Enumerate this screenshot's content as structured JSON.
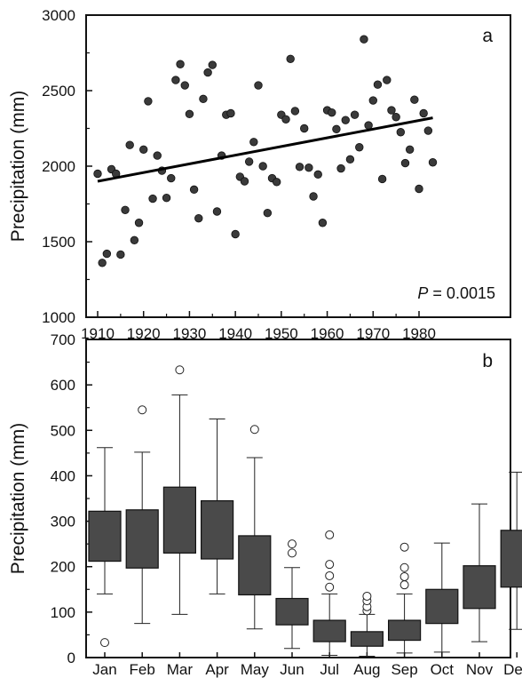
{
  "chart_data": [
    {
      "type": "scatter",
      "panel_label": "a",
      "ylabel": "Precipitation (mm)",
      "xlabel": "",
      "xlim": [
        1906,
        1984
      ],
      "ylim": [
        1000,
        3000
      ],
      "xticks": [
        1910,
        1920,
        1930,
        1940,
        1950,
        1960,
        1970,
        1980
      ],
      "yticks": [
        1000,
        1500,
        2000,
        2500,
        3000
      ],
      "annotation_var": "P",
      "annotation_value": " = 0.0015",
      "grid": false,
      "trend_line": {
        "x": [
          1910,
          1983
        ],
        "y": [
          1900,
          2320
        ]
      },
      "points": [
        [
          1910,
          1950
        ],
        [
          1911,
          1360
        ],
        [
          1912,
          1420
        ],
        [
          1913,
          1980
        ],
        [
          1914,
          1950
        ],
        [
          1915,
          1415
        ],
        [
          1916,
          1710
        ],
        [
          1917,
          2140
        ],
        [
          1918,
          1510
        ],
        [
          1919,
          1625
        ],
        [
          1920,
          2110
        ],
        [
          1921,
          2430
        ],
        [
          1922,
          1785
        ],
        [
          1923,
          2070
        ],
        [
          1924,
          1970
        ],
        [
          1925,
          1790
        ],
        [
          1926,
          1920
        ],
        [
          1927,
          2570
        ],
        [
          1928,
          2675
        ],
        [
          1929,
          2535
        ],
        [
          1930,
          2345
        ],
        [
          1931,
          1845
        ],
        [
          1932,
          1655
        ],
        [
          1933,
          2445
        ],
        [
          1934,
          2620
        ],
        [
          1935,
          2670
        ],
        [
          1936,
          1700
        ],
        [
          1937,
          2070
        ],
        [
          1938,
          2340
        ],
        [
          1939,
          2350
        ],
        [
          1940,
          1550
        ],
        [
          1941,
          1930
        ],
        [
          1942,
          1900
        ],
        [
          1943,
          2030
        ],
        [
          1944,
          2160
        ],
        [
          1945,
          2535
        ],
        [
          1946,
          2000
        ],
        [
          1947,
          1690
        ],
        [
          1948,
          1920
        ],
        [
          1949,
          1895
        ],
        [
          1950,
          2340
        ],
        [
          1951,
          2310
        ],
        [
          1952,
          2710
        ],
        [
          1953,
          2365
        ],
        [
          1954,
          1995
        ],
        [
          1955,
          2250
        ],
        [
          1956,
          1990
        ],
        [
          1957,
          1800
        ],
        [
          1958,
          1945
        ],
        [
          1959,
          1625
        ],
        [
          1960,
          2370
        ],
        [
          1961,
          2355
        ],
        [
          1962,
          2245
        ],
        [
          1963,
          1985
        ],
        [
          1964,
          2305
        ],
        [
          1965,
          2045
        ],
        [
          1966,
          2340
        ],
        [
          1967,
          2125
        ],
        [
          1968,
          2840
        ],
        [
          1969,
          2270
        ],
        [
          1970,
          2435
        ],
        [
          1971,
          2540
        ],
        [
          1972,
          1915
        ],
        [
          1973,
          2570
        ],
        [
          1974,
          2370
        ],
        [
          1975,
          2325
        ],
        [
          1976,
          2225
        ],
        [
          1977,
          2020
        ],
        [
          1978,
          2110
        ],
        [
          1979,
          2440
        ],
        [
          1980,
          1850
        ],
        [
          1981,
          2350
        ],
        [
          1982,
          2235
        ],
        [
          1983,
          2025
        ]
      ]
    },
    {
      "type": "box",
      "panel_label": "b",
      "ylabel": "Precipitation (mm)",
      "xlabel": "",
      "ylim": [
        0,
        700
      ],
      "yticks": [
        0,
        100,
        200,
        300,
        400,
        500,
        600,
        700
      ],
      "categories": [
        "Jan",
        "Feb",
        "Mar",
        "Apr",
        "May",
        "Jun",
        "Jul",
        "Aug",
        "Sep",
        "Oct",
        "Nov",
        "Dec"
      ],
      "boxes": [
        {
          "min": 140,
          "q1": 212,
          "q3": 322,
          "max": 462,
          "outliers": [
            33
          ]
        },
        {
          "min": 75,
          "q1": 197,
          "q3": 325,
          "max": 452,
          "outliers": [
            545
          ]
        },
        {
          "min": 95,
          "q1": 230,
          "q3": 375,
          "max": 578,
          "outliers": [
            633
          ]
        },
        {
          "min": 140,
          "q1": 217,
          "q3": 345,
          "max": 525,
          "outliers": []
        },
        {
          "min": 63,
          "q1": 138,
          "q3": 268,
          "max": 440,
          "outliers": [
            502
          ]
        },
        {
          "min": 20,
          "q1": 72,
          "q3": 130,
          "max": 198,
          "outliers": [
            230,
            250
          ]
        },
        {
          "min": 5,
          "q1": 35,
          "q3": 82,
          "max": 140,
          "outliers": [
            155,
            180,
            205,
            270
          ]
        },
        {
          "min": 3,
          "q1": 25,
          "q3": 57,
          "max": 95,
          "outliers": [
            103,
            112,
            125,
            135
          ]
        },
        {
          "min": 10,
          "q1": 38,
          "q3": 82,
          "max": 140,
          "outliers": [
            160,
            178,
            198,
            243
          ]
        },
        {
          "min": 12,
          "q1": 75,
          "q3": 150,
          "max": 252,
          "outliers": []
        },
        {
          "min": 35,
          "q1": 108,
          "q3": 202,
          "max": 338,
          "outliers": []
        },
        {
          "min": 62,
          "q1": 155,
          "q3": 280,
          "max": 408,
          "outliers": []
        }
      ]
    }
  ],
  "style": {
    "axis_color": "#111111",
    "marker_fill": "#3a3a3a",
    "box_fill": "#4a4a4a",
    "outlier_stroke": "#222222"
  }
}
